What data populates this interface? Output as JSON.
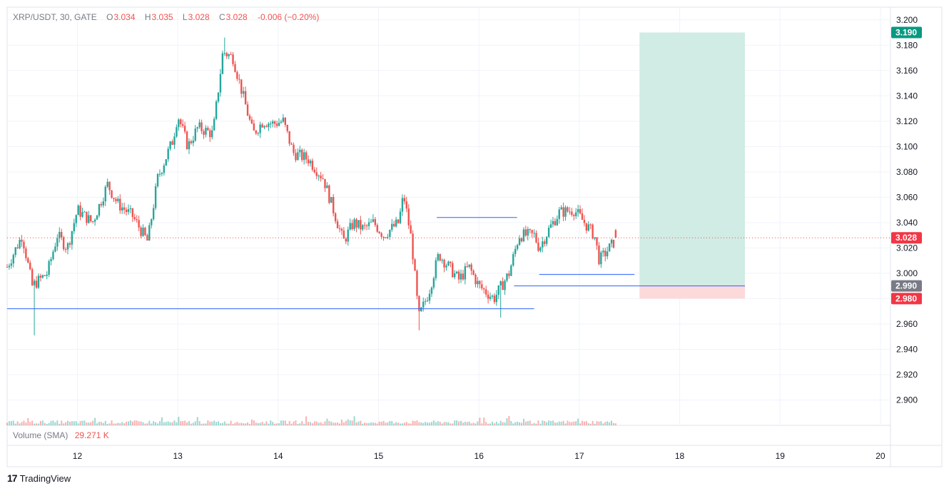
{
  "legend": {
    "symbol": "XRP/USDT, 30, GATE",
    "open_label": "O",
    "open": "3.034",
    "high_label": "H",
    "high": "3.035",
    "low_label": "L",
    "low": "3.028",
    "close_label": "C",
    "close": "3.028",
    "change": "-0.006 (−0.20%)"
  },
  "volume_legend": {
    "label": "Volume (SMA)",
    "value": "29.271 K"
  },
  "brand": {
    "logo": "17",
    "name": "TradingView"
  },
  "colors": {
    "up": "#26a69a",
    "down": "#ef5350",
    "line": "#2962ff",
    "grid": "#f0f3fa",
    "target_zone": "#d1ebe5",
    "stop_zone": "#fcd9da",
    "target_badge": "#089981",
    "stop_badge": "#f23645",
    "price_badge": "#f23645",
    "entry_badge": "#787b86"
  },
  "chart_data": {
    "type": "candlestick",
    "timeframe": "30",
    "y_axis": {
      "ticks": [
        "3.200",
        "3.180",
        "3.160",
        "3.140",
        "3.120",
        "3.100",
        "3.080",
        "3.060",
        "3.040",
        "3.020",
        "3.000",
        "2.980",
        "2.960",
        "2.940",
        "2.920",
        "2.900"
      ],
      "ylim": [
        2.88,
        3.21
      ]
    },
    "x_axis": {
      "ticks": [
        "12",
        "13",
        "14",
        "15",
        "16",
        "17",
        "18",
        "19",
        "20"
      ],
      "xlim": [
        11.3,
        20.1
      ]
    },
    "price_labels": {
      "target": "3.190",
      "current": "3.028",
      "entry": "2.990",
      "stop": "2.980"
    },
    "current_price": 3.028,
    "anchors": [
      [
        11.3,
        3.005
      ],
      [
        11.45,
        3.03
      ],
      [
        11.55,
        2.99
      ],
      [
        11.7,
        3.0
      ],
      [
        11.8,
        3.03
      ],
      [
        11.9,
        3.02
      ],
      [
        12.0,
        3.05
      ],
      [
        12.15,
        3.04
      ],
      [
        12.3,
        3.07
      ],
      [
        12.4,
        3.055
      ],
      [
        12.55,
        3.045
      ],
      [
        12.7,
        3.025
      ],
      [
        12.8,
        3.075
      ],
      [
        12.95,
        3.105
      ],
      [
        13.0,
        3.125
      ],
      [
        13.1,
        3.1
      ],
      [
        13.2,
        3.115
      ],
      [
        13.35,
        3.11
      ],
      [
        13.45,
        3.175
      ],
      [
        13.55,
        3.17
      ],
      [
        13.65,
        3.14
      ],
      [
        13.75,
        3.11
      ],
      [
        13.85,
        3.12
      ],
      [
        13.95,
        3.118
      ],
      [
        14.05,
        3.12
      ],
      [
        14.15,
        3.095
      ],
      [
        14.3,
        3.09
      ],
      [
        14.45,
        3.075
      ],
      [
        14.55,
        3.05
      ],
      [
        14.65,
        3.025
      ],
      [
        14.75,
        3.04
      ],
      [
        14.85,
        3.035
      ],
      [
        14.95,
        3.04
      ],
      [
        15.05,
        3.03
      ],
      [
        15.2,
        3.04
      ],
      [
        15.25,
        3.062
      ],
      [
        15.33,
        3.025
      ],
      [
        15.4,
        2.965
      ],
      [
        15.5,
        2.985
      ],
      [
        15.6,
        3.015
      ],
      [
        15.7,
        3.005
      ],
      [
        15.8,
        2.995
      ],
      [
        15.9,
        3.005
      ],
      [
        16.0,
        2.99
      ],
      [
        16.15,
        2.98
      ],
      [
        16.3,
        3.0
      ],
      [
        16.4,
        3.03
      ],
      [
        16.55,
        3.03
      ],
      [
        16.6,
        3.02
      ],
      [
        16.7,
        3.035
      ],
      [
        16.8,
        3.048
      ],
      [
        16.95,
        3.05
      ],
      [
        17.05,
        3.04
      ],
      [
        17.15,
        3.03
      ],
      [
        17.2,
        3.01
      ],
      [
        17.3,
        3.02
      ],
      [
        17.38,
        3.028
      ]
    ],
    "extremes": [
      {
        "t": 11.58,
        "low": 2.951
      },
      {
        "t": 13.47,
        "high": 3.186
      },
      {
        "t": 15.4,
        "low": 2.955
      },
      {
        "t": 16.21,
        "low": 2.965
      }
    ],
    "horizontal_lines": [
      {
        "price": 2.972,
        "x_start": 11.3,
        "x_end": 16.55
      },
      {
        "price": 3.044,
        "x_start": 15.58,
        "x_end": 16.38
      },
      {
        "price": 2.999,
        "x_start": 16.6,
        "x_end": 17.55
      },
      {
        "price": 2.99,
        "x_start": 16.35,
        "x_end": 18.65
      }
    ],
    "position": {
      "entry": 2.99,
      "target": 3.19,
      "stop": 2.98,
      "x_start": 17.6,
      "x_end": 18.65
    }
  }
}
